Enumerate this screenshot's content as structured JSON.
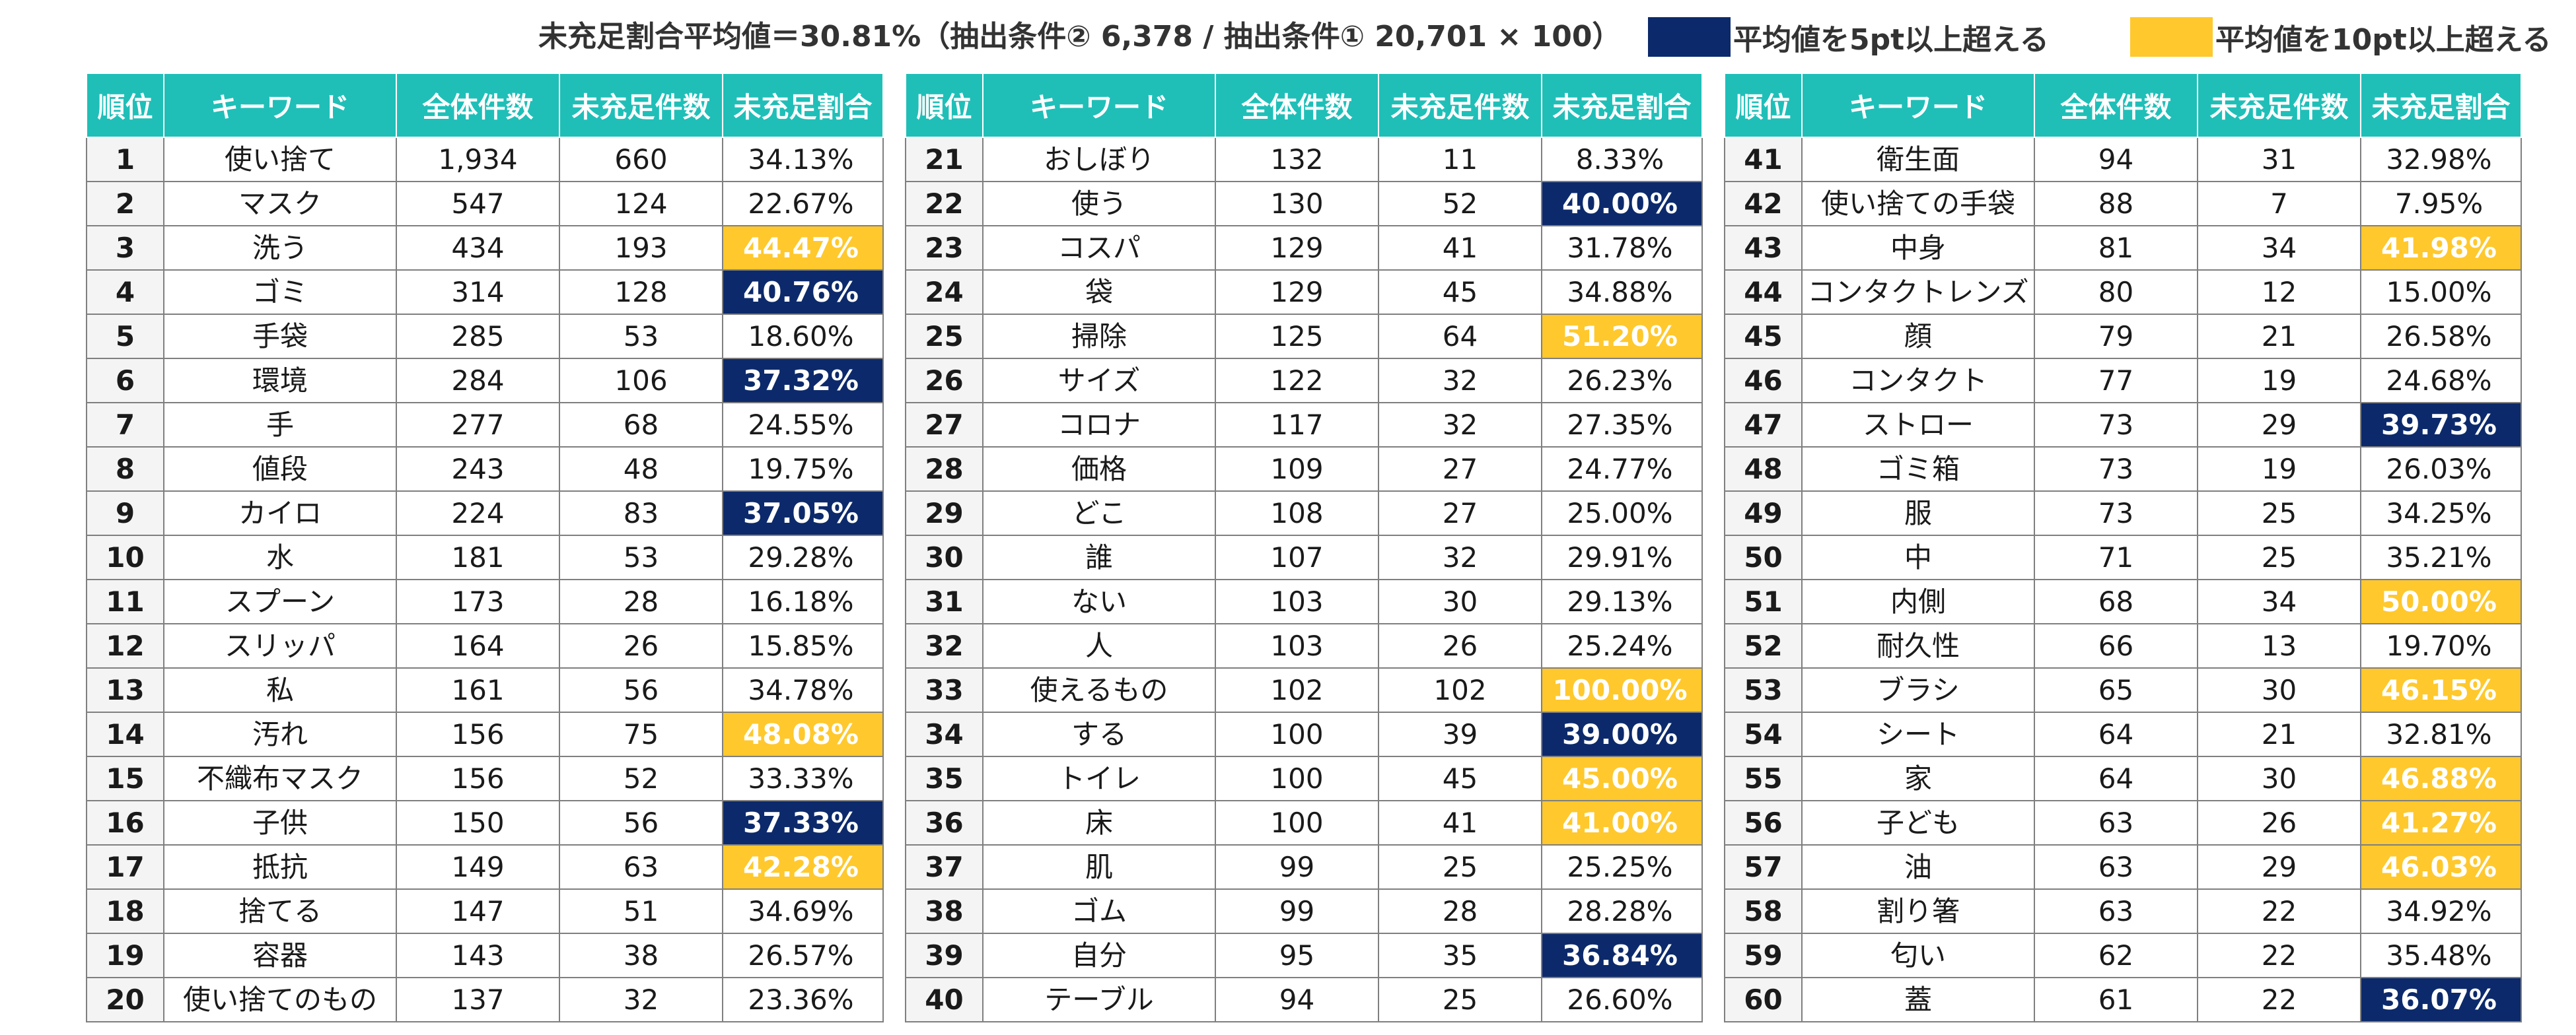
{
  "header": {
    "summary": "未充足割合平均値＝30.81%（抽出条件② 6,378 / 抽出条件① 20,701 × 100）",
    "legend": [
      {
        "label": "平均値を5pt以上超える",
        "color": "#0c2a6b"
      },
      {
        "label": "平均値を10pt以上超える",
        "color": "#ffc82c"
      }
    ]
  },
  "columns": [
    "順位",
    "キーワード",
    "全体件数",
    "未充足件数",
    "未充足割合"
  ],
  "colors": {
    "header_bg": "#1fbfb8",
    "blue": "#0c2a6b",
    "yellow": "#ffc82c",
    "border": "#7f7f7f"
  },
  "tables": [
    {
      "rows": [
        {
          "rank": "1",
          "keyword": "使い捨て",
          "total": "1,934",
          "unmet": "660",
          "ratio": "34.13%",
          "highlight": ""
        },
        {
          "rank": "2",
          "keyword": "マスク",
          "total": "547",
          "unmet": "124",
          "ratio": "22.67%",
          "highlight": ""
        },
        {
          "rank": "3",
          "keyword": "洗う",
          "total": "434",
          "unmet": "193",
          "ratio": "44.47%",
          "highlight": "yellow"
        },
        {
          "rank": "4",
          "keyword": "ゴミ",
          "total": "314",
          "unmet": "128",
          "ratio": "40.76%",
          "highlight": "blue"
        },
        {
          "rank": "5",
          "keyword": "手袋",
          "total": "285",
          "unmet": "53",
          "ratio": "18.60%",
          "highlight": ""
        },
        {
          "rank": "6",
          "keyword": "環境",
          "total": "284",
          "unmet": "106",
          "ratio": "37.32%",
          "highlight": "blue"
        },
        {
          "rank": "7",
          "keyword": "手",
          "total": "277",
          "unmet": "68",
          "ratio": "24.55%",
          "highlight": ""
        },
        {
          "rank": "8",
          "keyword": "値段",
          "total": "243",
          "unmet": "48",
          "ratio": "19.75%",
          "highlight": ""
        },
        {
          "rank": "9",
          "keyword": "カイロ",
          "total": "224",
          "unmet": "83",
          "ratio": "37.05%",
          "highlight": "blue"
        },
        {
          "rank": "10",
          "keyword": "水",
          "total": "181",
          "unmet": "53",
          "ratio": "29.28%",
          "highlight": ""
        },
        {
          "rank": "11",
          "keyword": "スプーン",
          "total": "173",
          "unmet": "28",
          "ratio": "16.18%",
          "highlight": ""
        },
        {
          "rank": "12",
          "keyword": "スリッパ",
          "total": "164",
          "unmet": "26",
          "ratio": "15.85%",
          "highlight": ""
        },
        {
          "rank": "13",
          "keyword": "私",
          "total": "161",
          "unmet": "56",
          "ratio": "34.78%",
          "highlight": ""
        },
        {
          "rank": "14",
          "keyword": "汚れ",
          "total": "156",
          "unmet": "75",
          "ratio": "48.08%",
          "highlight": "yellow"
        },
        {
          "rank": "15",
          "keyword": "不織布マスク",
          "total": "156",
          "unmet": "52",
          "ratio": "33.33%",
          "highlight": ""
        },
        {
          "rank": "16",
          "keyword": "子供",
          "total": "150",
          "unmet": "56",
          "ratio": "37.33%",
          "highlight": "blue"
        },
        {
          "rank": "17",
          "keyword": "抵抗",
          "total": "149",
          "unmet": "63",
          "ratio": "42.28%",
          "highlight": "yellow"
        },
        {
          "rank": "18",
          "keyword": "捨てる",
          "total": "147",
          "unmet": "51",
          "ratio": "34.69%",
          "highlight": ""
        },
        {
          "rank": "19",
          "keyword": "容器",
          "total": "143",
          "unmet": "38",
          "ratio": "26.57%",
          "highlight": ""
        },
        {
          "rank": "20",
          "keyword": "使い捨てのもの",
          "total": "137",
          "unmet": "32",
          "ratio": "23.36%",
          "highlight": ""
        }
      ]
    },
    {
      "rows": [
        {
          "rank": "21",
          "keyword": "おしぼり",
          "total": "132",
          "unmet": "11",
          "ratio": "8.33%",
          "highlight": ""
        },
        {
          "rank": "22",
          "keyword": "使う",
          "total": "130",
          "unmet": "52",
          "ratio": "40.00%",
          "highlight": "blue"
        },
        {
          "rank": "23",
          "keyword": "コスパ",
          "total": "129",
          "unmet": "41",
          "ratio": "31.78%",
          "highlight": ""
        },
        {
          "rank": "24",
          "keyword": "袋",
          "total": "129",
          "unmet": "45",
          "ratio": "34.88%",
          "highlight": ""
        },
        {
          "rank": "25",
          "keyword": "掃除",
          "total": "125",
          "unmet": "64",
          "ratio": "51.20%",
          "highlight": "yellow"
        },
        {
          "rank": "26",
          "keyword": "サイズ",
          "total": "122",
          "unmet": "32",
          "ratio": "26.23%",
          "highlight": ""
        },
        {
          "rank": "27",
          "keyword": "コロナ",
          "total": "117",
          "unmet": "32",
          "ratio": "27.35%",
          "highlight": ""
        },
        {
          "rank": "28",
          "keyword": "価格",
          "total": "109",
          "unmet": "27",
          "ratio": "24.77%",
          "highlight": ""
        },
        {
          "rank": "29",
          "keyword": "どこ",
          "total": "108",
          "unmet": "27",
          "ratio": "25.00%",
          "highlight": ""
        },
        {
          "rank": "30",
          "keyword": "誰",
          "total": "107",
          "unmet": "32",
          "ratio": "29.91%",
          "highlight": ""
        },
        {
          "rank": "31",
          "keyword": "ない",
          "total": "103",
          "unmet": "30",
          "ratio": "29.13%",
          "highlight": ""
        },
        {
          "rank": "32",
          "keyword": "人",
          "total": "103",
          "unmet": "26",
          "ratio": "25.24%",
          "highlight": ""
        },
        {
          "rank": "33",
          "keyword": "使えるもの",
          "total": "102",
          "unmet": "102",
          "ratio": "100.00%",
          "highlight": "yellow"
        },
        {
          "rank": "34",
          "keyword": "する",
          "total": "100",
          "unmet": "39",
          "ratio": "39.00%",
          "highlight": "blue"
        },
        {
          "rank": "35",
          "keyword": "トイレ",
          "total": "100",
          "unmet": "45",
          "ratio": "45.00%",
          "highlight": "yellow"
        },
        {
          "rank": "36",
          "keyword": "床",
          "total": "100",
          "unmet": "41",
          "ratio": "41.00%",
          "highlight": "yellow"
        },
        {
          "rank": "37",
          "keyword": "肌",
          "total": "99",
          "unmet": "25",
          "ratio": "25.25%",
          "highlight": ""
        },
        {
          "rank": "38",
          "keyword": "ゴム",
          "total": "99",
          "unmet": "28",
          "ratio": "28.28%",
          "highlight": ""
        },
        {
          "rank": "39",
          "keyword": "自分",
          "total": "95",
          "unmet": "35",
          "ratio": "36.84%",
          "highlight": "blue"
        },
        {
          "rank": "40",
          "keyword": "テーブル",
          "total": "94",
          "unmet": "25",
          "ratio": "26.60%",
          "highlight": ""
        }
      ]
    },
    {
      "rows": [
        {
          "rank": "41",
          "keyword": "衛生面",
          "total": "94",
          "unmet": "31",
          "ratio": "32.98%",
          "highlight": ""
        },
        {
          "rank": "42",
          "keyword": "使い捨ての手袋",
          "total": "88",
          "unmet": "7",
          "ratio": "7.95%",
          "highlight": ""
        },
        {
          "rank": "43",
          "keyword": "中身",
          "total": "81",
          "unmet": "34",
          "ratio": "41.98%",
          "highlight": "yellow"
        },
        {
          "rank": "44",
          "keyword": "コンタクトレンズ",
          "total": "80",
          "unmet": "12",
          "ratio": "15.00%",
          "highlight": ""
        },
        {
          "rank": "45",
          "keyword": "顔",
          "total": "79",
          "unmet": "21",
          "ratio": "26.58%",
          "highlight": ""
        },
        {
          "rank": "46",
          "keyword": "コンタクト",
          "total": "77",
          "unmet": "19",
          "ratio": "24.68%",
          "highlight": ""
        },
        {
          "rank": "47",
          "keyword": "ストロー",
          "total": "73",
          "unmet": "29",
          "ratio": "39.73%",
          "highlight": "blue"
        },
        {
          "rank": "48",
          "keyword": "ゴミ箱",
          "total": "73",
          "unmet": "19",
          "ratio": "26.03%",
          "highlight": ""
        },
        {
          "rank": "49",
          "keyword": "服",
          "total": "73",
          "unmet": "25",
          "ratio": "34.25%",
          "highlight": ""
        },
        {
          "rank": "50",
          "keyword": "中",
          "total": "71",
          "unmet": "25",
          "ratio": "35.21%",
          "highlight": ""
        },
        {
          "rank": "51",
          "keyword": "内側",
          "total": "68",
          "unmet": "34",
          "ratio": "50.00%",
          "highlight": "yellow"
        },
        {
          "rank": "52",
          "keyword": "耐久性",
          "total": "66",
          "unmet": "13",
          "ratio": "19.70%",
          "highlight": ""
        },
        {
          "rank": "53",
          "keyword": "ブラシ",
          "total": "65",
          "unmet": "30",
          "ratio": "46.15%",
          "highlight": "yellow"
        },
        {
          "rank": "54",
          "keyword": "シート",
          "total": "64",
          "unmet": "21",
          "ratio": "32.81%",
          "highlight": ""
        },
        {
          "rank": "55",
          "keyword": "家",
          "total": "64",
          "unmet": "30",
          "ratio": "46.88%",
          "highlight": "yellow"
        },
        {
          "rank": "56",
          "keyword": "子ども",
          "total": "63",
          "unmet": "26",
          "ratio": "41.27%",
          "highlight": "yellow"
        },
        {
          "rank": "57",
          "keyword": "油",
          "total": "63",
          "unmet": "29",
          "ratio": "46.03%",
          "highlight": "yellow"
        },
        {
          "rank": "58",
          "keyword": "割り箸",
          "total": "63",
          "unmet": "22",
          "ratio": "34.92%",
          "highlight": ""
        },
        {
          "rank": "59",
          "keyword": "匂い",
          "total": "62",
          "unmet": "22",
          "ratio": "35.48%",
          "highlight": ""
        },
        {
          "rank": "60",
          "keyword": "蓋",
          "total": "61",
          "unmet": "22",
          "ratio": "36.07%",
          "highlight": "blue"
        }
      ]
    }
  ]
}
